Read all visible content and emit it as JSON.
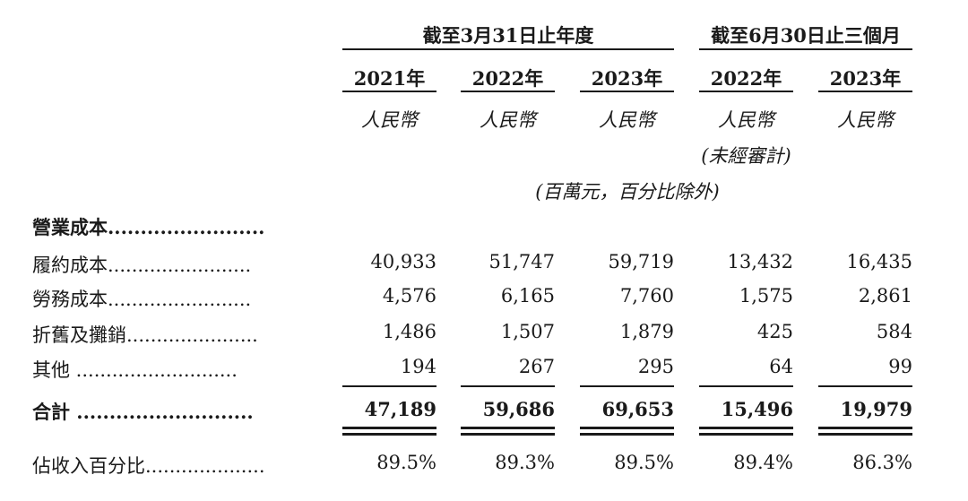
{
  "header": {
    "group_fy": "截至3月31日止年度",
    "group_q": "截至6月30日止三個月",
    "years": [
      "2021年",
      "2022年",
      "2023年",
      "2022年",
      "2023年"
    ],
    "currency": [
      "人民幣",
      "人民幣",
      "人民幣",
      "人民幣",
      "人民幣"
    ],
    "unaudited": "(未經審計)",
    "units_note": "(百萬元，百分比除外)"
  },
  "rows": [
    {
      "label": "營業成本........................",
      "values": [
        "",
        "",
        "",
        "",
        ""
      ],
      "bold": true
    },
    {
      "label": "履約成本........................",
      "values": [
        "40,933",
        "51,747",
        "59,719",
        "13,432",
        "16,435"
      ]
    },
    {
      "label": "勞務成本........................",
      "values": [
        "4,576",
        "6,165",
        "7,760",
        "1,575",
        "2,861"
      ]
    },
    {
      "label": "折舊及攤銷......................",
      "values": [
        "1,486",
        "1,507",
        "1,879",
        "425",
        "584"
      ]
    },
    {
      "label": "其他 ...........................",
      "values": [
        "194",
        "267",
        "295",
        "64",
        "99"
      ]
    },
    {
      "label": "合計 ...........................",
      "values": [
        "47,189",
        "59,686",
        "69,653",
        "15,496",
        "19,979"
      ],
      "bold": true
    },
    {
      "label": "佔收入百分比....................",
      "values": [
        "89.5%",
        "89.3%",
        "89.5%",
        "89.4%",
        "86.3%"
      ]
    }
  ]
}
